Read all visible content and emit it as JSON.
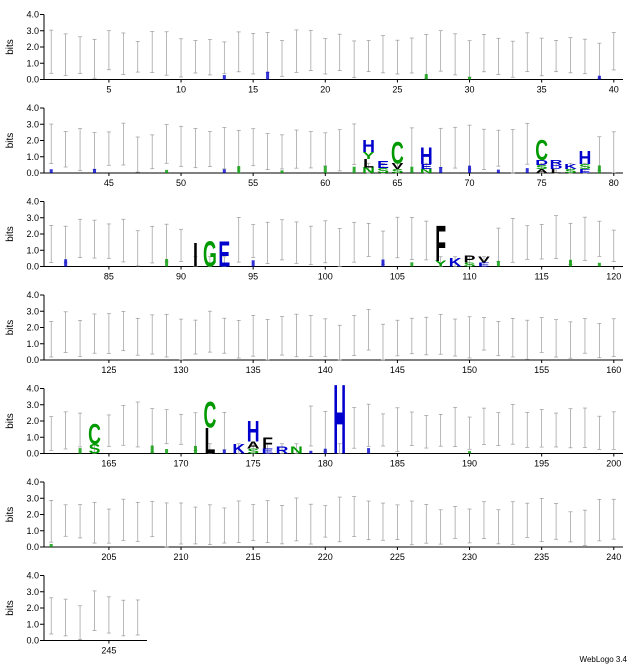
{
  "chart_data": {
    "type": "sequence-logo",
    "ylabel": "bits",
    "y_ticks": [
      "0.0",
      "1.0",
      "2.0",
      "3.0",
      "4.0"
    ],
    "ylim": [
      0,
      4.3
    ],
    "positions_per_row": 40,
    "total_positions": 247,
    "x_tick_step": 5,
    "colors": {
      "hydrophobic": "#000000",
      "polar": "#009900",
      "basic": "#0000cc",
      "acidic": "#0000cc",
      "error_bar": "#9a9a9a"
    },
    "stacks": [
      {
        "pos": 63,
        "letters": [
          {
            "l": "N",
            "h": 0.35
          },
          {
            "l": "L",
            "h": 0.5
          },
          {
            "l": "Y",
            "h": 0.45
          },
          {
            "l": "H",
            "h": 0.75
          }
        ]
      },
      {
        "pos": 64,
        "letters": [
          {
            "l": "S",
            "h": 0.3
          },
          {
            "l": "E",
            "h": 0.45
          }
        ]
      },
      {
        "pos": 65,
        "letters": [
          {
            "l": "S",
            "h": 0.25
          },
          {
            "l": "V",
            "h": 0.35
          },
          {
            "l": "C",
            "h": 1.35
          }
        ]
      },
      {
        "pos": 67,
        "letters": [
          {
            "l": "N",
            "h": 0.25
          },
          {
            "l": "E",
            "h": 0.3
          },
          {
            "l": "H",
            "h": 1.05
          }
        ]
      },
      {
        "pos": 75,
        "letters": [
          {
            "l": "A",
            "h": 0.25
          },
          {
            "l": "S",
            "h": 0.25
          },
          {
            "l": "D",
            "h": 0.3
          },
          {
            "l": "C",
            "h": 1.25
          }
        ]
      },
      {
        "pos": 76,
        "letters": [
          {
            "l": "L",
            "h": 0.25
          },
          {
            "l": "D",
            "h": 0.25
          },
          {
            "l": "R",
            "h": 0.3
          }
        ]
      },
      {
        "pos": 77,
        "letters": [
          {
            "l": "S",
            "h": 0.25
          },
          {
            "l": "K",
            "h": 0.3
          }
        ]
      },
      {
        "pos": 78,
        "letters": [
          {
            "l": "E",
            "h": 0.25
          },
          {
            "l": "S",
            "h": 0.3
          },
          {
            "l": "H",
            "h": 0.8
          }
        ]
      },
      {
        "pos": 91,
        "letters": [
          {
            "l": "I",
            "h": 1.5
          }
        ]
      },
      {
        "pos": 92,
        "letters": [
          {
            "l": "G",
            "h": 1.55
          }
        ]
      },
      {
        "pos": 93,
        "letters": [
          {
            "l": "E",
            "h": 1.55
          }
        ]
      },
      {
        "pos": 108,
        "letters": [
          {
            "l": "Y",
            "h": 0.35
          },
          {
            "l": "F",
            "h": 2.2
          }
        ]
      },
      {
        "pos": 109,
        "letters": [
          {
            "l": "K",
            "h": 0.5
          }
        ]
      },
      {
        "pos": 110,
        "letters": [
          {
            "l": "S",
            "h": 0.25
          },
          {
            "l": "P",
            "h": 0.45
          }
        ]
      },
      {
        "pos": 111,
        "letters": [
          {
            "l": "E",
            "h": 0.25
          },
          {
            "l": "V",
            "h": 0.35
          }
        ]
      },
      {
        "pos": 164,
        "letters": [
          {
            "l": "S",
            "h": 0.6
          },
          {
            "l": "C",
            "h": 1.25
          }
        ]
      },
      {
        "pos": 172,
        "letters": [
          {
            "l": "L",
            "h": 1.6
          },
          {
            "l": "C",
            "h": 1.6
          }
        ]
      },
      {
        "pos": 174,
        "letters": [
          {
            "l": "K",
            "h": 0.6
          }
        ]
      },
      {
        "pos": 175,
        "letters": [
          {
            "l": "S",
            "h": 0.3
          },
          {
            "l": "A",
            "h": 0.45
          },
          {
            "l": "H",
            "h": 1.3
          }
        ]
      },
      {
        "pos": 176,
        "letters": [
          {
            "l": "E",
            "h": 0.3
          },
          {
            "l": "F",
            "h": 0.7
          }
        ]
      },
      {
        "pos": 177,
        "letters": [
          {
            "l": "R",
            "h": 0.45
          }
        ]
      },
      {
        "pos": 178,
        "letters": [
          {
            "l": "N",
            "h": 0.45
          }
        ]
      },
      {
        "pos": 181,
        "letters": [
          {
            "l": "H",
            "h": 4.3
          }
        ]
      }
    ],
    "small_stacks": [
      13,
      16,
      27,
      30,
      39,
      41,
      44,
      49,
      53,
      54,
      57,
      60,
      62,
      66,
      68,
      70,
      72,
      74,
      79,
      82,
      89,
      95,
      104,
      106,
      112,
      117,
      119,
      163,
      168,
      169,
      171,
      173,
      179,
      180,
      183,
      190,
      201
    ]
  },
  "footer": {
    "label": "WebLogo 3.4"
  }
}
